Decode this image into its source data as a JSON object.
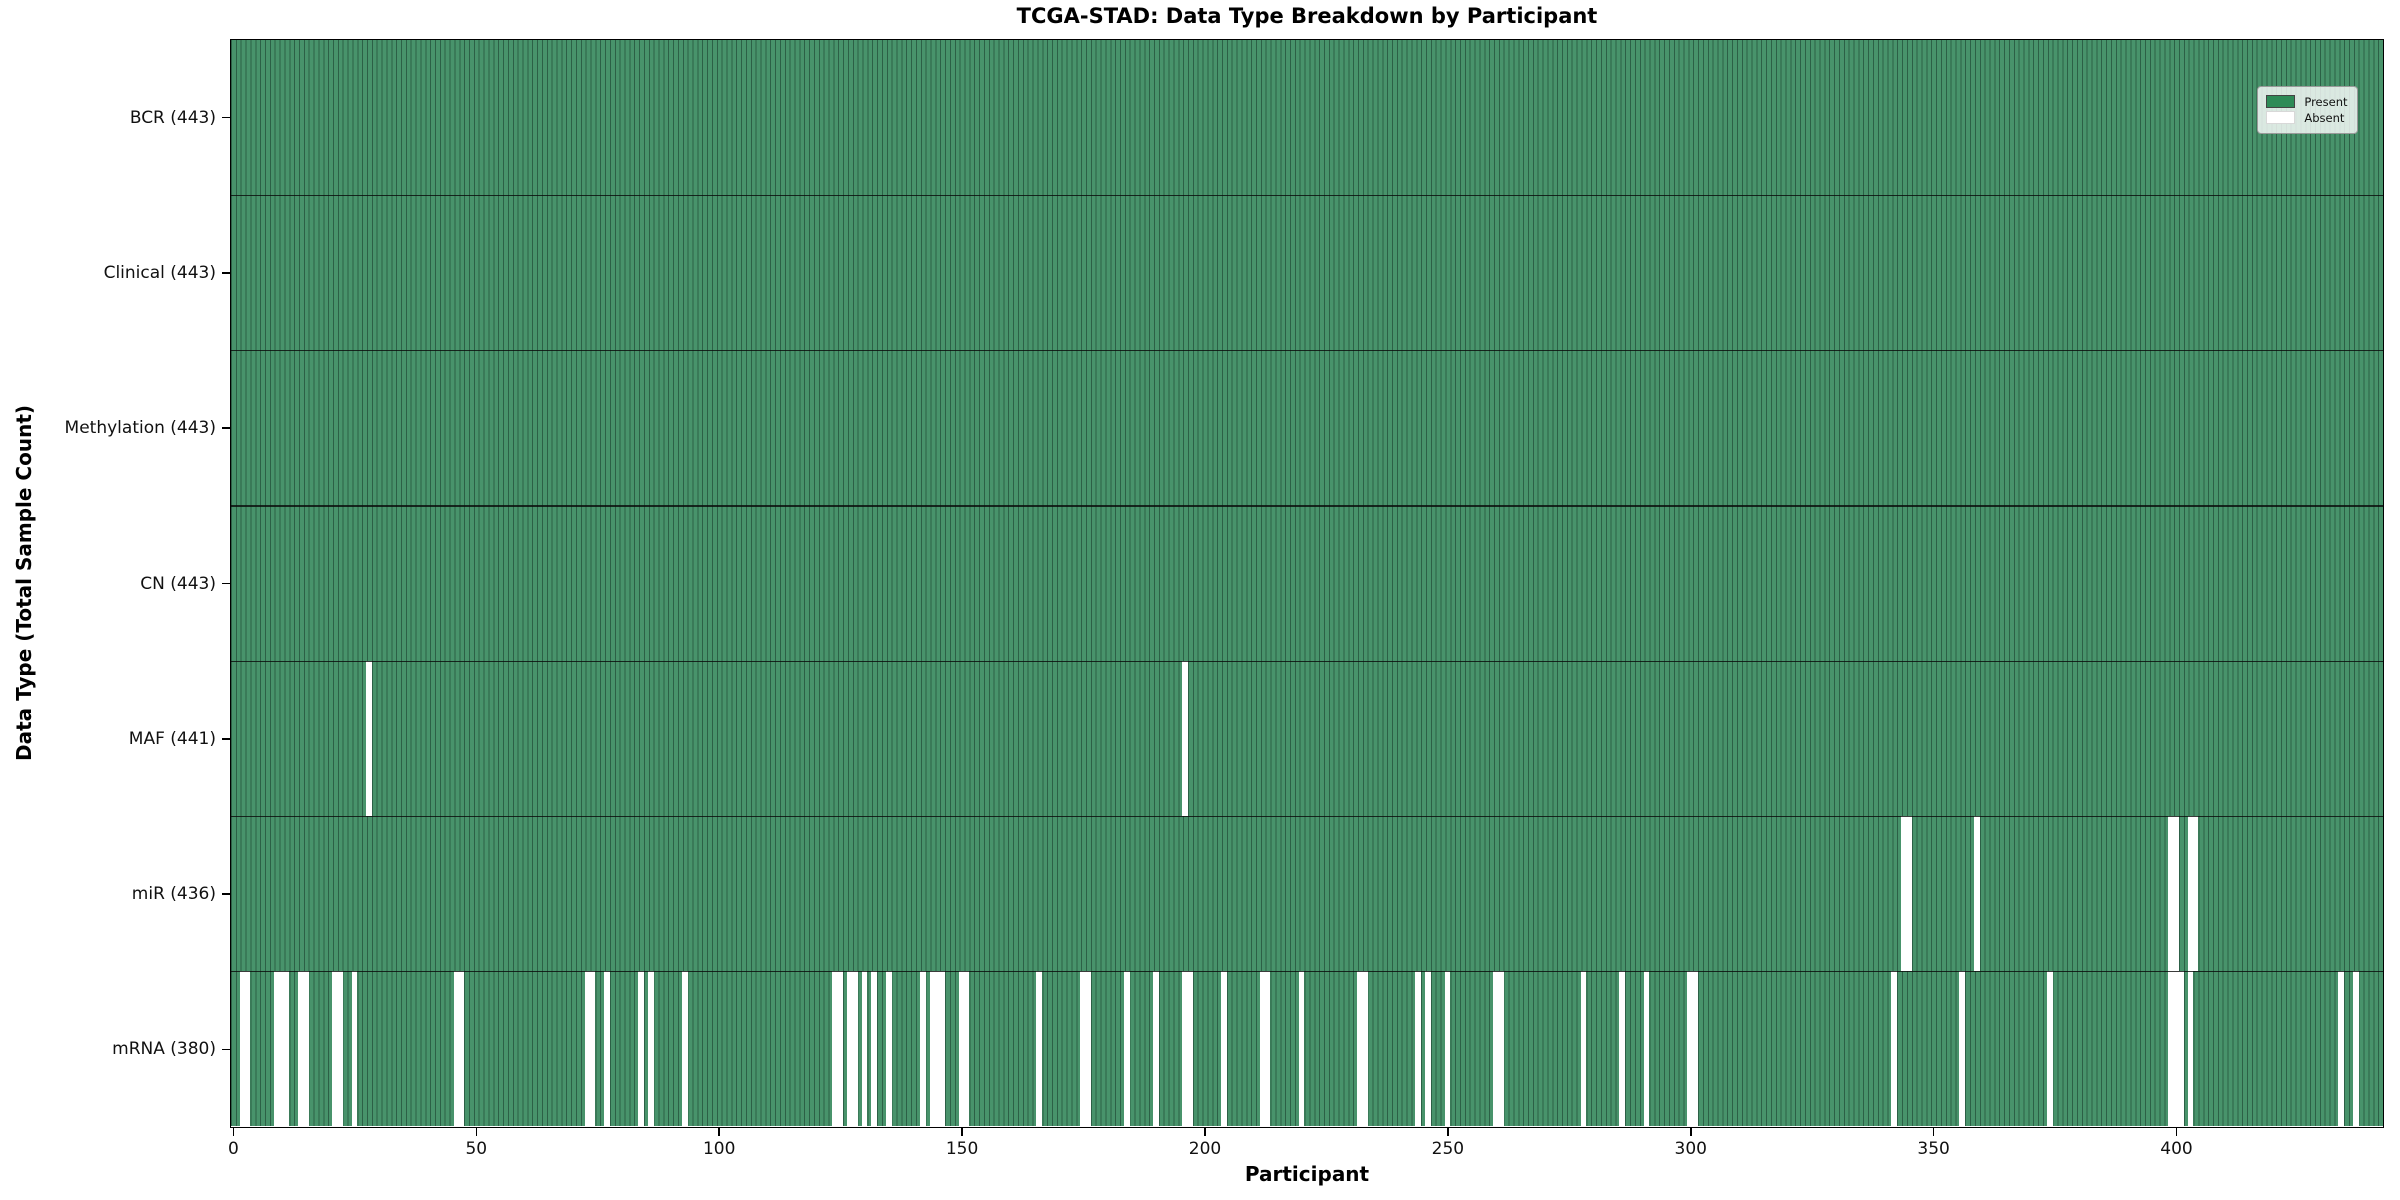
{
  "title": "TCGA-STAD: Data Type Breakdown by Participant",
  "legend": {
    "present": "Present",
    "absent": "Absent",
    "position": "upper right"
  },
  "colors": {
    "present_fill": "#48936B",
    "bar_edge": "#2C6046",
    "absent": "#FFFFFF",
    "separator": "#1A1A1A",
    "legend_present_swatch": "#2E8B57",
    "axis": "#000000",
    "background": "#FFFFFF"
  },
  "chart_data": {
    "type": "heatmap",
    "title": "TCGA-STAD: Data Type Breakdown by Participant",
    "xlabel": "Participant",
    "ylabel": "Data Type (Total Sample Count)",
    "x_ticks": [
      0,
      50,
      100,
      150,
      200,
      250,
      300,
      350,
      400
    ],
    "xlim": [
      -0.5,
      442.5
    ],
    "n_participants": 443,
    "grid": false,
    "legend_entries": [
      "Present",
      "Absent"
    ],
    "legend_position": "upper right",
    "cell_values": "present=1 (green), absent=0 (white)",
    "rows": [
      {
        "label": "BCR (443)",
        "data_type": "BCR",
        "present_count": 443,
        "absent_participants": []
      },
      {
        "label": "Clinical (443)",
        "data_type": "Clinical",
        "present_count": 443,
        "absent_participants": []
      },
      {
        "label": "Methylation (443)",
        "data_type": "Methylation",
        "present_count": 443,
        "absent_participants": []
      },
      {
        "label": "CN (443)",
        "data_type": "CN",
        "present_count": 443,
        "absent_participants": []
      },
      {
        "label": "MAF (441)",
        "data_type": "MAF",
        "present_count": 441,
        "absent_participants": [
          28,
          196
        ]
      },
      {
        "label": "miR (436)",
        "data_type": "miR",
        "present_count": 436,
        "absent_participants": [
          344,
          345,
          359,
          399,
          400,
          403,
          404
        ]
      },
      {
        "label": "mRNA (380)",
        "data_type": "mRNA",
        "present_count": 380,
        "absent_participants": [
          2,
          3,
          9,
          10,
          11,
          14,
          15,
          21,
          22,
          25,
          46,
          47,
          73,
          74,
          77,
          84,
          86,
          93,
          124,
          125,
          127,
          128,
          130,
          132,
          135,
          142,
          144,
          145,
          146,
          150,
          151,
          166,
          175,
          176,
          184,
          190,
          196,
          197,
          204,
          212,
          213,
          220,
          232,
          233,
          244,
          246,
          250,
          260,
          261,
          278,
          286,
          291,
          300,
          301,
          342,
          356,
          374,
          399,
          400,
          401,
          403,
          434,
          437
        ]
      }
    ]
  }
}
